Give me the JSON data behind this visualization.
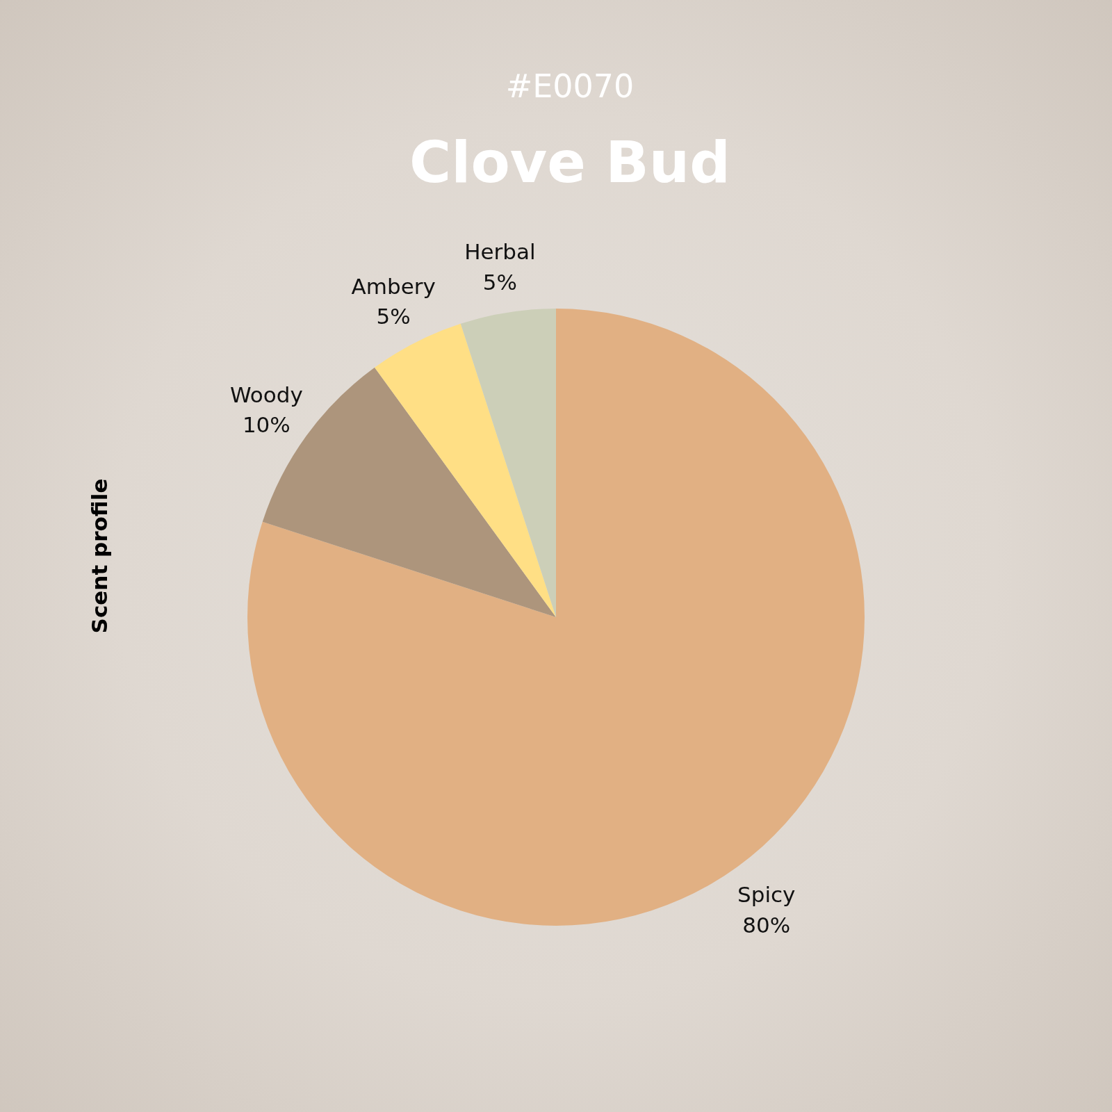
{
  "chart_data": {
    "type": "pie",
    "title": "Clove Bud",
    "subtitle": "#E0070",
    "ylabel": "Scent profile",
    "categories": [
      "Spicy",
      "Woody",
      "Ambery",
      "Herbal"
    ],
    "values": [
      80,
      10,
      5,
      5
    ],
    "colors": [
      "#e1b083",
      "#ad957c",
      "#ffdf85",
      "#cccfb8"
    ],
    "value_labels": [
      "80%",
      "10%",
      "5%",
      "5%"
    ]
  }
}
